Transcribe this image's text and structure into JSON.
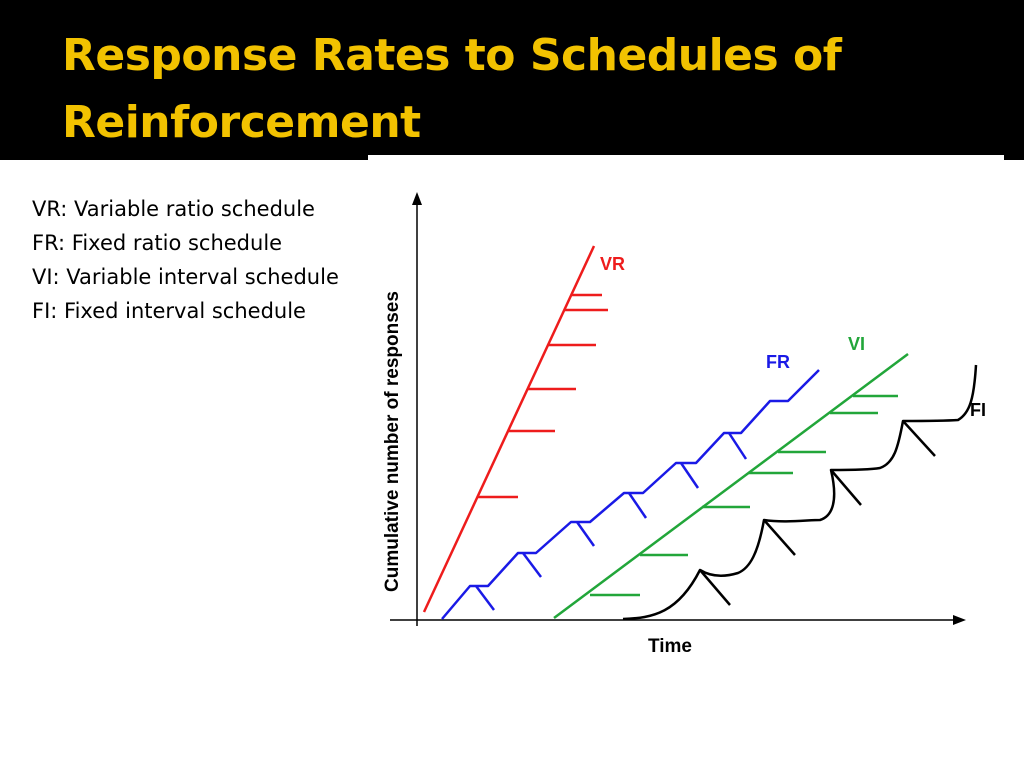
{
  "slide": {
    "title_line1": "Response Rates to Schedules of",
    "title_line2": "Reinforcement"
  },
  "legend": {
    "items": [
      "VR: Variable ratio schedule",
      "FR: Fixed ratio schedule",
      "VI: Variable interval schedule",
      "FI: Fixed interval schedule"
    ]
  },
  "graph": {
    "x_axis_label": "Time",
    "y_axis_label": "Cumulative number of responses",
    "series": {
      "vr": {
        "label": "VR",
        "color": "#ee1c1c"
      },
      "fr": {
        "label": "FR",
        "color": "#1a1ae6"
      },
      "vi": {
        "label": "VI",
        "color": "#22a63a"
      },
      "fi": {
        "label": "FI",
        "color": "#000000"
      }
    }
  }
}
